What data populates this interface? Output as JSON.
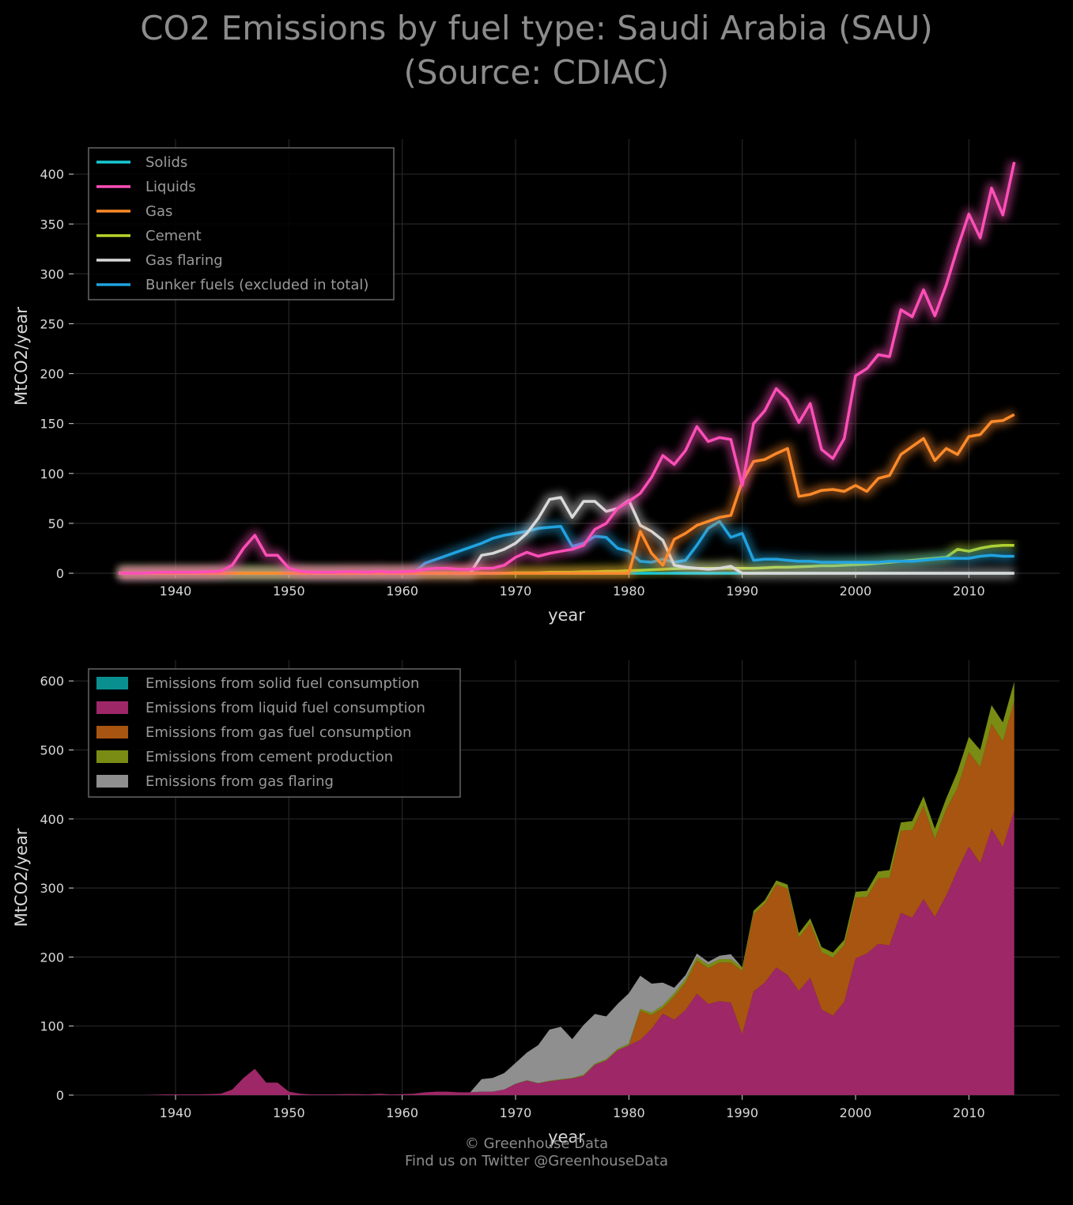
{
  "title": {
    "line1": "CO2 Emissions by fuel type: Saudi Arabia (SAU)",
    "line2": "(Source: CDIAC)"
  },
  "footer": {
    "line1": "© Greenhouse Data",
    "line2": "Find us on Twitter @GreenhouseData"
  },
  "colors": {
    "background": "#000000",
    "grid": "#262626",
    "solids": "#17c9d4",
    "liquids": "#ff4fb8",
    "gas": "#ff8a2a",
    "cement": "#b8d42a",
    "flaring": "#d9d9d9",
    "bunker": "#1fa3e0",
    "area_solid": "#0a8f8f",
    "area_liquid": "#9e2768",
    "area_gas": "#a85512",
    "area_cement": "#7a8c13",
    "area_flaring": "#8f8f8f"
  },
  "chart_data": [
    {
      "type": "line",
      "xlabel": "year",
      "ylabel": "MtCO2/year",
      "xlim": [
        1931,
        2018
      ],
      "ylim": [
        0,
        435
      ],
      "xticks": [
        1940,
        1950,
        1960,
        1970,
        1980,
        1990,
        2000,
        2010
      ],
      "yticks": [
        0,
        50,
        100,
        150,
        200,
        250,
        300,
        350,
        400
      ],
      "grid": true,
      "legend_position": "top-left",
      "x": [
        1935,
        1936,
        1937,
        1938,
        1939,
        1940,
        1941,
        1942,
        1943,
        1944,
        1945,
        1946,
        1947,
        1948,
        1949,
        1950,
        1951,
        1952,
        1953,
        1954,
        1955,
        1956,
        1957,
        1958,
        1959,
        1960,
        1961,
        1962,
        1963,
        1964,
        1965,
        1966,
        1967,
        1968,
        1969,
        1970,
        1971,
        1972,
        1973,
        1974,
        1975,
        1976,
        1977,
        1978,
        1979,
        1980,
        1981,
        1982,
        1983,
        1984,
        1985,
        1986,
        1987,
        1988,
        1989,
        1990,
        1991,
        1992,
        1993,
        1994,
        1995,
        1996,
        1997,
        1998,
        1999,
        2000,
        2001,
        2002,
        2003,
        2004,
        2005,
        2006,
        2007,
        2008,
        2009,
        2010,
        2011,
        2012,
        2013,
        2014
      ],
      "series": [
        {
          "name": "Solids",
          "key": "solids",
          "values": [
            0,
            0,
            0,
            0,
            0,
            0,
            0,
            0,
            0,
            0,
            0,
            0,
            0,
            0,
            0,
            0,
            0,
            0,
            0,
            0,
            0,
            0,
            0,
            0,
            0,
            0,
            0,
            0,
            0,
            0,
            0,
            0,
            0,
            0,
            0,
            0,
            0,
            0,
            0,
            0,
            0,
            0,
            0,
            0,
            0,
            0,
            0,
            0,
            0,
            0,
            0,
            0,
            0,
            0,
            0,
            0,
            0,
            0,
            0,
            0,
            0,
            0,
            0,
            0,
            0,
            0,
            0,
            0,
            0,
            0,
            0,
            0,
            0,
            0,
            0,
            0,
            0,
            0,
            0,
            0
          ]
        },
        {
          "name": "Liquids",
          "key": "liquids",
          "values": [
            0,
            0,
            0,
            0.5,
            1,
            1,
            1,
            1,
            1.5,
            2,
            8,
            25,
            38,
            18,
            18,
            5,
            2,
            1,
            1,
            1,
            1.5,
            1.5,
            1,
            2,
            1,
            1.5,
            2,
            4,
            5,
            5,
            4,
            4,
            5,
            5,
            8,
            16,
            21,
            17,
            20,
            22,
            24,
            28,
            44,
            50,
            65,
            72,
            80,
            96,
            118,
            109,
            123,
            147,
            132,
            136,
            134,
            88,
            150,
            163,
            185,
            174,
            151,
            170,
            124,
            115,
            135,
            198,
            205,
            219,
            217,
            264,
            257,
            284,
            258,
            289,
            326,
            360,
            336,
            386,
            359,
            412
          ]
        },
        {
          "name": "Gas",
          "key": "gas",
          "values": [
            0,
            0,
            0,
            0,
            0,
            0,
            0,
            0,
            0,
            0,
            0,
            0,
            0,
            0,
            0,
            0,
            0,
            0,
            0,
            0,
            0,
            0,
            0,
            0,
            0,
            0,
            0,
            0,
            0,
            0,
            0,
            0,
            0,
            0,
            0,
            0,
            0,
            0,
            0,
            0,
            0,
            0,
            0,
            0,
            0,
            0,
            42,
            20,
            8,
            34,
            40,
            48,
            52,
            56,
            58,
            92,
            112,
            114,
            120,
            125,
            77,
            79,
            83,
            84,
            82,
            88,
            82,
            95,
            98,
            119,
            127,
            135,
            113,
            125,
            119,
            137,
            139,
            152,
            153,
            159
          ]
        },
        {
          "name": "Cement",
          "key": "cement",
          "values": [
            0,
            0,
            0,
            0,
            0,
            0,
            0,
            0,
            0,
            0,
            0,
            0,
            0,
            0,
            0,
            0,
            0,
            0,
            0,
            0,
            0,
            0,
            0,
            0,
            0,
            0,
            0,
            0,
            0,
            0,
            0,
            0,
            0,
            0,
            0,
            0.5,
            0.5,
            0.5,
            1,
            1,
            1,
            1.5,
            1.5,
            2,
            2,
            2.5,
            3,
            3.5,
            4,
            4.5,
            5,
            5,
            5,
            5,
            5,
            5,
            5,
            5.5,
            6,
            6,
            6.5,
            7,
            7.5,
            7.5,
            8,
            8.5,
            9,
            10,
            11,
            12,
            13,
            14,
            15,
            16,
            24,
            22,
            25,
            27,
            28,
            28
          ]
        },
        {
          "name": "Gas flaring",
          "key": "flaring",
          "values": [
            0,
            0,
            0,
            0,
            0,
            0,
            0,
            0,
            0,
            0,
            0,
            0,
            0,
            0,
            0,
            0,
            0,
            0,
            0,
            0,
            0,
            0,
            0,
            0,
            0,
            0,
            0,
            0,
            0,
            0,
            0,
            0,
            18,
            20,
            24,
            30,
            40,
            55,
            74,
            76,
            56,
            72,
            72,
            62,
            65,
            73,
            48,
            42,
            33,
            8,
            6,
            5,
            4,
            5,
            7,
            0,
            0,
            0,
            0,
            0,
            0,
            0,
            0,
            0,
            0,
            0,
            0,
            0,
            0,
            0,
            0,
            0,
            0,
            0,
            0,
            0,
            0,
            0,
            0,
            0
          ]
        },
        {
          "name": "Bunker fuels (excluded in total)",
          "key": "bunker",
          "values": [
            0,
            0,
            0,
            0,
            0,
            0,
            0,
            0,
            0,
            0,
            0,
            0,
            0,
            0,
            0,
            0,
            0,
            0,
            0,
            0,
            0,
            0,
            0,
            0,
            0,
            0,
            0,
            10,
            14,
            18,
            22,
            26,
            30,
            35,
            38,
            40,
            42,
            45,
            46,
            47,
            27,
            30,
            37,
            36,
            25,
            22,
            12,
            11,
            14,
            11,
            13,
            28,
            45,
            52,
            36,
            40,
            13,
            14,
            14,
            13,
            12,
            12,
            11,
            11,
            11,
            11,
            11,
            11,
            12,
            12,
            12,
            13,
            14,
            15,
            15,
            15,
            17,
            18,
            17,
            17
          ]
        }
      ]
    },
    {
      "type": "area",
      "stacked": true,
      "xlabel": "year",
      "ylabel": "MtCO2/year",
      "xlim": [
        1931,
        2018
      ],
      "ylim": [
        0,
        630
      ],
      "xticks": [
        1940,
        1950,
        1960,
        1970,
        1980,
        1990,
        2000,
        2010
      ],
      "yticks": [
        0,
        100,
        200,
        300,
        400,
        500,
        600
      ],
      "grid": true,
      "legend_position": "top-left",
      "series": [
        {
          "name": "Emissions from solid fuel consumption",
          "key": "area_solid",
          "source": "solids"
        },
        {
          "name": "Emissions from liquid fuel consumption",
          "key": "area_liquid",
          "source": "liquids"
        },
        {
          "name": "Emissions from gas fuel consumption",
          "key": "area_gas",
          "source": "gas"
        },
        {
          "name": "Emissions from cement production",
          "key": "area_cement",
          "source": "cement"
        },
        {
          "name": "Emissions from gas flaring",
          "key": "area_flaring",
          "source": "flaring"
        }
      ]
    }
  ]
}
